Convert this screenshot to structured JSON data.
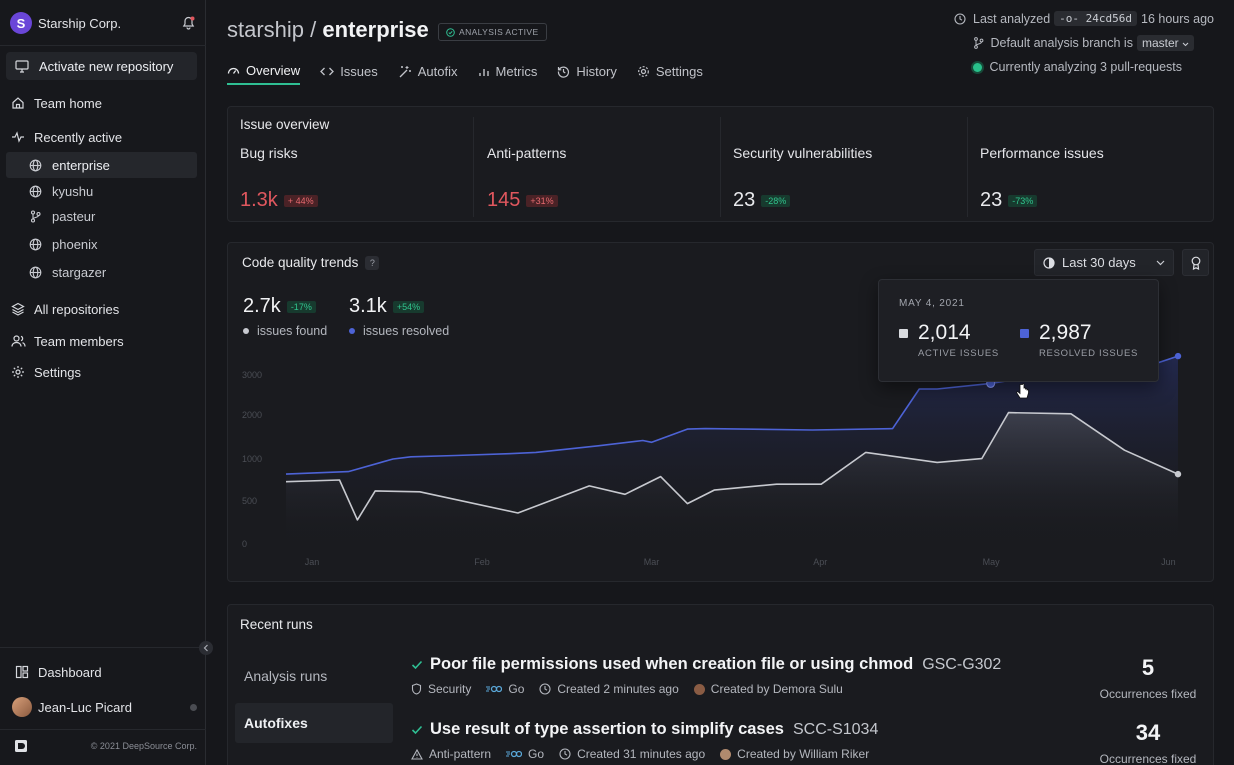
{
  "sidebar": {
    "org_initial": "S",
    "org_name": "Starship Corp.",
    "activate": "Activate new repository",
    "team_home": "Team home",
    "recently_active": "Recently active",
    "repos": [
      {
        "name": "enterprise",
        "icon": "globe-icon"
      },
      {
        "name": "kyushu",
        "icon": "globe-icon"
      },
      {
        "name": "pasteur",
        "icon": "branch-icon"
      },
      {
        "name": "phoenix",
        "icon": "globe-icon"
      },
      {
        "name": "stargazer",
        "icon": "globe-icon"
      }
    ],
    "all_repos": "All repositories",
    "team_members": "Team members",
    "settings": "Settings",
    "dashboard": "Dashboard",
    "user_name": "Jean-Luc Picard",
    "copyright": "© 2021 DeepSource Corp."
  },
  "header": {
    "owner": "starship",
    "separator": " / ",
    "repo": "enterprise",
    "status_badge": "ANALYSIS ACTIVE",
    "tabs": [
      {
        "label": "Overview",
        "icon": "gauge-icon"
      },
      {
        "label": "Issues",
        "icon": "code-icon"
      },
      {
        "label": "Autofix",
        "icon": "wand-icon"
      },
      {
        "label": "Metrics",
        "icon": "bar-chart-icon"
      },
      {
        "label": "History",
        "icon": "history-icon"
      },
      {
        "label": "Settings",
        "icon": "gear-icon"
      }
    ],
    "last_analyzed_prefix": "Last analyzed",
    "commit": "-o- 24cd56d",
    "last_analyzed_suffix": "16 hours ago",
    "branch_prefix": "Default analysis branch is",
    "branch": "master",
    "analyzing": "Currently analyzing 3 pull-requests"
  },
  "issue_overview": {
    "title": "Issue overview",
    "items": [
      {
        "label": "Bug risks",
        "value": "1.3k",
        "delta": "+ 44%",
        "tone": "red",
        "color": "#e0575e"
      },
      {
        "label": "Anti-patterns",
        "value": "145",
        "delta": "+31%",
        "tone": "red",
        "color": "#e0575e"
      },
      {
        "label": "Security vulnerabilities",
        "value": "23",
        "delta": "-28%",
        "tone": "green",
        "color": "#f2f3f5"
      },
      {
        "label": "Performance issues",
        "value": "23",
        "delta": "-73%",
        "tone": "green",
        "color": "#f2f3f5"
      }
    ]
  },
  "trends": {
    "title": "Code quality trends",
    "help": "?",
    "period": "Last 30 days",
    "found_value": "2.7k",
    "found_delta": "-17%",
    "found_label": "issues found",
    "resolved_value": "3.1k",
    "resolved_delta": "+54%",
    "resolved_label": "issues resolved",
    "tooltip": {
      "date": "MAY 4, 2021",
      "active_value": "2,014",
      "active_label": "ACTIVE ISSUES",
      "resolved_value": "2,987",
      "resolved_label": "RESOLVED ISSUES"
    }
  },
  "chart_data": {
    "type": "line",
    "ytick_labels": [
      "3000",
      "2000",
      "1000",
      "500",
      "0"
    ],
    "ytick_values": [
      3000,
      2000,
      1000,
      500,
      0
    ],
    "xtick_labels": [
      "Jan",
      "Feb",
      "Mar",
      "Apr",
      "May",
      "Jun"
    ],
    "xtick_positions": [
      0.03,
      0.22,
      0.41,
      0.6,
      0.79,
      0.99
    ],
    "ylim": [
      0,
      3500
    ],
    "grid": false,
    "series": [
      {
        "key": "resolved",
        "color": "#4d63d6",
        "x": [
          0,
          0.07,
          0.12,
          0.14,
          0.19,
          0.25,
          0.28,
          0.35,
          0.4,
          0.41,
          0.45,
          0.47,
          0.59,
          0.68,
          0.71,
          0.73,
          0.79,
          0.85,
          0.94,
          1.0
        ],
        "values": [
          820,
          850,
          1000,
          1050,
          1080,
          1120,
          1150,
          1300,
          1420,
          1380,
          1680,
          1690,
          1660,
          1690,
          2650,
          2650,
          2790,
          3000,
          3020,
          3350
        ]
      },
      {
        "key": "active",
        "color": "#c7c9cf",
        "x": [
          0,
          0.06,
          0.08,
          0.1,
          0.15,
          0.26,
          0.34,
          0.38,
          0.42,
          0.45,
          0.48,
          0.55,
          0.6,
          0.65,
          0.73,
          0.78,
          0.81,
          0.88,
          0.94,
          1.0
        ],
        "values": [
          730,
          750,
          280,
          620,
          610,
          360,
          680,
          580,
          790,
          470,
          630,
          700,
          700,
          1150,
          960,
          1010,
          2060,
          2030,
          1200,
          820
        ]
      }
    ]
  },
  "recent_runs": {
    "title": "Recent runs",
    "tabs": [
      "Analysis runs",
      "Autofixes"
    ],
    "runs": [
      {
        "title": "Poor file permissions used when creation file or using chmod",
        "code": "GSC-G302",
        "category": "Security",
        "lang": "Go",
        "created": "Created 2 minutes ago",
        "author": "Created by Demora Sulu",
        "count": "5",
        "count_label": "Occurrences fixed"
      },
      {
        "title": "Use result of type assertion to simplify cases",
        "code": "SCC-S1034",
        "category": "Anti-pattern",
        "lang": "Go",
        "created": "Created 31 minutes ago",
        "author": "Created by William Riker",
        "count": "34",
        "count_label": "Occurrences fixed"
      }
    ]
  }
}
